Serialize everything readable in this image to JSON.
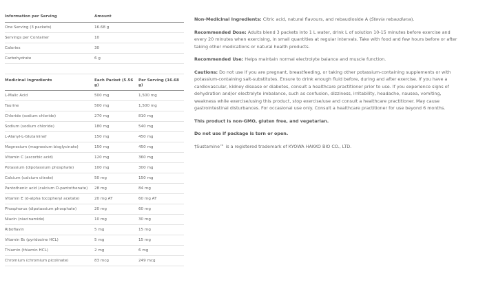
{
  "serving_table": {
    "headers": [
      "Information per Serving",
      "Amount"
    ],
    "rows": [
      [
        "One Serving (3 packets)",
        "16.68 g"
      ],
      [
        "Servings per Container",
        "10"
      ],
      [
        "Calories",
        "30"
      ],
      [
        "Carbohydrate",
        "6 g"
      ]
    ]
  },
  "ingredients_table": {
    "headers": [
      "Medicinal Ingredients",
      "Each Packet (5.56 g)",
      "Per Serving (16.68 g)"
    ],
    "rows": [
      [
        "L-Malic Acid",
        "500 mg",
        "1,500 mg"
      ],
      [
        "Taurine",
        "500 mg",
        "1,500 mg"
      ],
      [
        "Chloride (sodium chloride)",
        "270 mg",
        "810 mg"
      ],
      [
        "Sodium (sodium chloride)",
        "180 mg",
        "540 mg"
      ],
      [
        "L-Alanyl-L-Glutamine†",
        "150 mg",
        "450 mg"
      ],
      [
        "Magnesium (magnesium bisglycinate)",
        "150 mg",
        "450 mg"
      ],
      [
        "Vitamin C (ascorbic acid)",
        "120 mg",
        "360 mg"
      ],
      [
        "Potassium (dipotassium phosphate)",
        "100 mg",
        "300 mg"
      ],
      [
        "Calcium (calcium citrate)",
        "50 mg",
        "150 mg"
      ],
      [
        "Pantothenic acid (calcium D-pantothenate)",
        "28 mg",
        "84 mg"
      ],
      [
        "Vitamin E (d-alpha tocopheryl acetate)",
        "20 mg AT",
        "60 mg AT"
      ],
      [
        "Phosphorus (dipotassium phosphate)",
        "20 mg",
        "60 mg"
      ],
      [
        "Niacin (niacinamide)",
        "10 mg",
        "30 mg"
      ],
      [
        "Riboflavin",
        "5 mg",
        "15 mg"
      ],
      [
        "Vitamin B₆ (pyridoxine HCL)",
        "5 mg",
        "15 mg"
      ],
      [
        "Thiamin (thiamin HCL)",
        "2 mg",
        "6 mg"
      ],
      [
        "Chromium (chromium picolinate)",
        "83 mcg",
        "249 mcg"
      ]
    ]
  },
  "details": {
    "non_medicinal_label": "Non-Medicinal Ingredients:",
    "non_medicinal_text": " Citric acid, natural flavours, and rebaudioside A (",
    "non_medicinal_italic": "Stevia rebaudiana",
    "non_medicinal_end": ").",
    "dose_label": "Recommended Dose:",
    "dose_text": " Adults blend 3 packets into 1 L water, drink L of solution 10-15 minutes before exercise and every 20 minutes when exercising, in small quantities at regular intervals. Take with food and few hours before or after taking other medications or natural health products.",
    "use_label": "Recommended Use:",
    "use_text": " Helps maintain normal electrolyte balance and muscle function.",
    "cautions_label": "Cautions:",
    "cautions_text": " Do not use if you are pregnant, breastfeeding, or taking other potassium-containing supplements or with potassium-containing salt-substitutes. Ensure to drink enough fluid before, during and after exercise. If you have a cardiovascular, kidney disease or diabetes, consult a healthcare practitioner prior to use. If you experience signs of dehydration and/or electrolyte imbalance, such as confusion, dizziness, irritability, headache, nausea, vomiting, weakness while exercise/using this product, stop exercise/use and consult a healthcare practitioner. May cause gastrointestinal disturbances. For occasional use only. Consult a healthcare practitioner for use beyond 6 months.",
    "non_gmo": "This product is non-GMO, gluten free, and vegetarian.",
    "package_warning": "Do not use if package is torn or open.",
    "trademark": "†Sustamine™ is a registered trademark of KYOWA HAKKO BIO CO., LTD."
  }
}
